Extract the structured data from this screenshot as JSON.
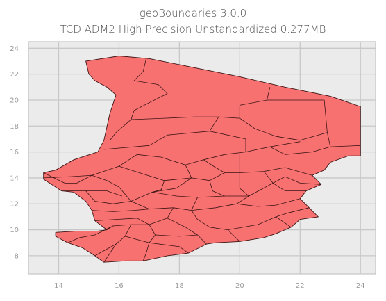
{
  "title": {
    "line1": "geoBoundaries 3.0.0",
    "line2": "TCD ADM2 High Precision Unstandardized 0.277MB"
  },
  "colors": {
    "plot_background": "#ebebeb",
    "grid": "#c8c8c8",
    "fill": "#f87171",
    "stroke": "#3d1414",
    "axis_text": "#9a9a9a"
  },
  "chart_data": {
    "type": "map",
    "title": "geoBoundaries 3.0.0\nTCD ADM2 High Precision Unstandardized 0.277MB",
    "xlim": [
      13.0,
      24.5
    ],
    "ylim": [
      6.6,
      24.5
    ],
    "x_ticks": [
      14,
      16,
      18,
      20,
      22,
      24
    ],
    "y_ticks": [
      8,
      10,
      12,
      14,
      16,
      18,
      20,
      22,
      24
    ],
    "x_tick_labels": [
      "14",
      "16",
      "18",
      "20",
      "22",
      "24"
    ],
    "y_tick_labels": [
      "8",
      "10",
      "12",
      "14",
      "16",
      "18",
      "20",
      "22",
      "24"
    ],
    "grid": true,
    "outline": [
      [
        14.9,
        23.0
      ],
      [
        16.0,
        23.4
      ],
      [
        17.0,
        23.2
      ],
      [
        18.5,
        22.5
      ],
      [
        20.0,
        21.8
      ],
      [
        21.5,
        21.0
      ],
      [
        23.0,
        20.3
      ],
      [
        24.0,
        19.5
      ],
      [
        24.0,
        15.7
      ],
      [
        23.6,
        15.7
      ],
      [
        23.0,
        15.2
      ],
      [
        22.8,
        14.6
      ],
      [
        22.4,
        14.2
      ],
      [
        22.7,
        13.5
      ],
      [
        22.2,
        13.0
      ],
      [
        22.0,
        12.4
      ],
      [
        22.3,
        11.7
      ],
      [
        22.6,
        11.0
      ],
      [
        22.0,
        10.8
      ],
      [
        21.7,
        10.2
      ],
      [
        21.2,
        9.7
      ],
      [
        20.8,
        9.4
      ],
      [
        20.0,
        9.1
      ],
      [
        19.2,
        9.0
      ],
      [
        18.9,
        8.9
      ],
      [
        18.3,
        8.2
      ],
      [
        17.6,
        8.0
      ],
      [
        16.8,
        7.6
      ],
      [
        16.2,
        7.6
      ],
      [
        15.5,
        7.5
      ],
      [
        15.2,
        8.0
      ],
      [
        14.8,
        8.6
      ],
      [
        14.3,
        9.0
      ],
      [
        13.9,
        9.5
      ],
      [
        13.9,
        9.8
      ],
      [
        14.6,
        9.9
      ],
      [
        15.3,
        9.9
      ],
      [
        15.6,
        10.0
      ],
      [
        15.2,
        10.7
      ],
      [
        15.1,
        11.5
      ],
      [
        14.9,
        12.2
      ],
      [
        14.5,
        12.9
      ],
      [
        14.1,
        13.0
      ],
      [
        13.5,
        13.9
      ],
      [
        13.5,
        14.4
      ],
      [
        13.9,
        14.6
      ],
      [
        14.5,
        15.4
      ],
      [
        15.3,
        16.0
      ],
      [
        15.5,
        16.9
      ],
      [
        15.7,
        19.0
      ],
      [
        15.9,
        20.4
      ],
      [
        15.6,
        21.0
      ],
      [
        15.2,
        21.5
      ],
      [
        15.0,
        22.0
      ],
      [
        14.9,
        23.0
      ]
    ],
    "internal_borders": [
      [
        [
          16.9,
          23.2
        ],
        [
          16.8,
          22.2
        ],
        [
          16.5,
          21.5
        ],
        [
          17.3,
          21.2
        ],
        [
          17.6,
          20.5
        ],
        [
          17.0,
          19.8
        ],
        [
          16.5,
          19.2
        ],
        [
          16.4,
          18.5
        ]
      ],
      [
        [
          16.4,
          18.5
        ],
        [
          17.5,
          18.6
        ],
        [
          18.5,
          18.7
        ],
        [
          19.3,
          18.7
        ],
        [
          20.0,
          18.6
        ]
      ],
      [
        [
          16.4,
          18.5
        ],
        [
          15.9,
          17.5
        ],
        [
          15.7,
          16.9
        ]
      ],
      [
        [
          20.0,
          18.6
        ],
        [
          20.0,
          19.6
        ],
        [
          20.9,
          20.0
        ],
        [
          21.8,
          20.0
        ],
        [
          22.8,
          20.0
        ]
      ],
      [
        [
          20.9,
          20.0
        ],
        [
          21.0,
          21.0
        ]
      ],
      [
        [
          22.8,
          20.0
        ],
        [
          22.9,
          17.5
        ],
        [
          23.0,
          16.4
        ],
        [
          24.0,
          16.5
        ]
      ],
      [
        [
          20.0,
          18.6
        ],
        [
          20.5,
          17.8
        ],
        [
          21.2,
          17.2
        ],
        [
          22.0,
          16.9
        ],
        [
          22.9,
          17.5
        ]
      ],
      [
        [
          19.3,
          18.7
        ],
        [
          19.0,
          17.6
        ],
        [
          17.6,
          17.3
        ],
        [
          17.0,
          16.5
        ],
        [
          15.5,
          16.2
        ]
      ],
      [
        [
          19.0,
          17.6
        ],
        [
          20.2,
          17.0
        ],
        [
          20.2,
          16.0
        ],
        [
          21.0,
          16.4
        ],
        [
          22.0,
          16.8
        ]
      ],
      [
        [
          21.0,
          16.4
        ],
        [
          21.5,
          15.8
        ],
        [
          22.4,
          16.0
        ],
        [
          23.0,
          16.4
        ]
      ],
      [
        [
          20.2,
          16.0
        ],
        [
          19.5,
          15.8
        ],
        [
          18.8,
          15.4
        ],
        [
          18.2,
          15.0
        ],
        [
          17.4,
          15.6
        ],
        [
          16.6,
          15.8
        ]
      ],
      [
        [
          16.6,
          15.8
        ],
        [
          16.0,
          14.9
        ],
        [
          15.1,
          14.2
        ],
        [
          14.4,
          14.1
        ],
        [
          13.5,
          14.0
        ]
      ],
      [
        [
          18.2,
          15.0
        ],
        [
          18.4,
          14.0
        ],
        [
          17.9,
          13.2
        ],
        [
          17.1,
          12.9
        ],
        [
          16.4,
          12.2
        ]
      ],
      [
        [
          18.4,
          14.0
        ],
        [
          19.0,
          13.8
        ],
        [
          19.5,
          14.4
        ],
        [
          20.0,
          14.4
        ],
        [
          20.8,
          14.5
        ],
        [
          21.5,
          14.8
        ],
        [
          22.4,
          14.2
        ]
      ],
      [
        [
          20.0,
          15.8
        ],
        [
          20.0,
          14.4
        ],
        [
          20.0,
          13.2
        ],
        [
          20.3,
          12.6
        ],
        [
          19.9,
          12.0
        ]
      ],
      [
        [
          20.8,
          14.5
        ],
        [
          21.1,
          13.6
        ],
        [
          21.5,
          13.0
        ],
        [
          22.2,
          13.0
        ]
      ],
      [
        [
          21.1,
          13.6
        ],
        [
          20.3,
          12.6
        ]
      ],
      [
        [
          16.0,
          14.9
        ],
        [
          16.8,
          14.3
        ],
        [
          17.5,
          13.8
        ],
        [
          18.4,
          14.0
        ]
      ],
      [
        [
          15.1,
          14.2
        ],
        [
          15.6,
          13.8
        ],
        [
          16.0,
          13.3
        ],
        [
          16.4,
          12.2
        ]
      ],
      [
        [
          14.1,
          13.0
        ],
        [
          14.9,
          13.0
        ],
        [
          15.6,
          13.0
        ],
        [
          16.1,
          12.6
        ]
      ],
      [
        [
          16.4,
          12.2
        ],
        [
          17.0,
          11.6
        ],
        [
          17.8,
          11.7
        ],
        [
          18.4,
          11.5
        ],
        [
          19.2,
          11.7
        ],
        [
          19.9,
          12.0
        ],
        [
          20.6,
          11.8
        ],
        [
          21.2,
          11.9
        ],
        [
          22.0,
          12.4
        ]
      ],
      [
        [
          18.4,
          11.5
        ],
        [
          18.6,
          10.8
        ],
        [
          19.0,
          10.2
        ],
        [
          19.6,
          10.0
        ],
        [
          20.0,
          9.1
        ]
      ],
      [
        [
          19.6,
          10.0
        ],
        [
          20.6,
          10.4
        ],
        [
          21.2,
          11.0
        ],
        [
          21.2,
          11.9
        ]
      ],
      [
        [
          21.2,
          11.0
        ],
        [
          21.7,
          10.2
        ]
      ],
      [
        [
          17.8,
          11.7
        ],
        [
          17.6,
          10.9
        ],
        [
          17.0,
          10.4
        ],
        [
          16.4,
          10.4
        ],
        [
          15.8,
          10.3
        ],
        [
          15.6,
          10.0
        ]
      ],
      [
        [
          17.6,
          10.9
        ],
        [
          18.2,
          10.2
        ],
        [
          18.6,
          9.6
        ],
        [
          18.9,
          8.9
        ]
      ],
      [
        [
          17.0,
          10.4
        ],
        [
          17.2,
          9.6
        ],
        [
          17.0,
          9.0
        ],
        [
          16.9,
          8.2
        ],
        [
          16.8,
          7.6
        ]
      ],
      [
        [
          16.4,
          10.4
        ],
        [
          16.2,
          9.5
        ],
        [
          15.9,
          8.9
        ],
        [
          15.7,
          8.2
        ],
        [
          15.5,
          7.5
        ]
      ],
      [
        [
          15.8,
          10.3
        ],
        [
          15.2,
          9.6
        ],
        [
          14.7,
          9.4
        ],
        [
          14.3,
          9.0
        ]
      ],
      [
        [
          17.2,
          9.6
        ],
        [
          18.0,
          9.5
        ],
        [
          18.6,
          9.6
        ]
      ],
      [
        [
          16.2,
          9.5
        ],
        [
          17.0,
          9.0
        ]
      ],
      [
        [
          17.0,
          9.0
        ],
        [
          18.0,
          8.7
        ],
        [
          18.3,
          8.2
        ]
      ],
      [
        [
          15.2,
          8.0
        ],
        [
          15.9,
          8.9
        ]
      ],
      [
        [
          15.1,
          11.5
        ],
        [
          15.8,
          11.4
        ],
        [
          16.5,
          11.5
        ],
        [
          17.0,
          11.6
        ]
      ],
      [
        [
          15.2,
          10.7
        ],
        [
          15.9,
          10.8
        ],
        [
          16.6,
          10.9
        ],
        [
          17.0,
          10.4
        ]
      ],
      [
        [
          13.5,
          14.4
        ],
        [
          14.2,
          13.6
        ],
        [
          14.6,
          13.6
        ],
        [
          15.1,
          14.2
        ]
      ],
      [
        [
          14.9,
          13.0
        ],
        [
          15.2,
          12.2
        ],
        [
          15.8,
          12.0
        ],
        [
          16.4,
          12.2
        ]
      ],
      [
        [
          22.7,
          13.5
        ],
        [
          22.0,
          13.6
        ],
        [
          21.5,
          14.1
        ],
        [
          21.1,
          13.6
        ]
      ],
      [
        [
          22.3,
          11.7
        ],
        [
          21.6,
          11.3
        ],
        [
          21.2,
          11.0
        ]
      ],
      [
        [
          18.8,
          15.4
        ],
        [
          19.2,
          14.8
        ],
        [
          19.5,
          14.4
        ]
      ],
      [
        [
          17.5,
          13.8
        ],
        [
          17.4,
          13.1
        ],
        [
          17.1,
          12.9
        ]
      ],
      [
        [
          19.0,
          13.8
        ],
        [
          19.1,
          13.0
        ],
        [
          19.5,
          12.6
        ],
        [
          20.3,
          12.6
        ]
      ],
      [
        [
          17.1,
          12.9
        ],
        [
          17.9,
          12.6
        ],
        [
          18.6,
          12.5
        ],
        [
          19.5,
          12.6
        ]
      ],
      [
        [
          18.6,
          12.5
        ],
        [
          18.4,
          11.5
        ]
      ]
    ]
  }
}
